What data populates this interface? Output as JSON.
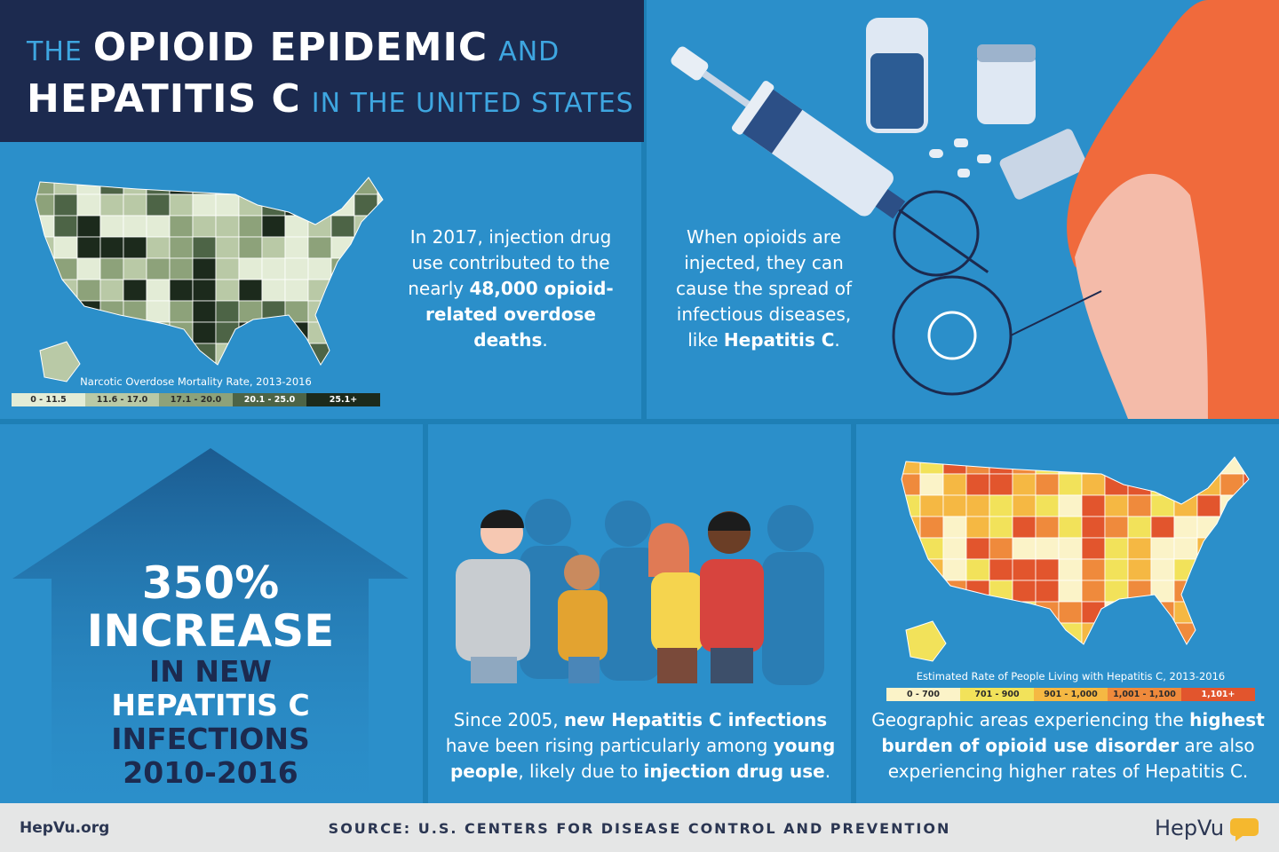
{
  "header": {
    "lines": [
      [
        {
          "text": "THE",
          "style": "light"
        },
        {
          "text": "OPIOID EPIDEMIC",
          "style": "bold"
        },
        {
          "text": "AND",
          "style": "light"
        }
      ],
      [
        {
          "text": "HEPATITIS C",
          "style": "bold"
        },
        {
          "text": "IN THE UNITED STATES",
          "style": "light"
        }
      ]
    ]
  },
  "overdose_map": {
    "caption": "Narcotic Overdose Mortality Rate, 2013-2016",
    "legend": [
      {
        "label": "0 - 11.5",
        "color": "#e3ecd6"
      },
      {
        "label": "11.6 - 17.0",
        "color": "#b9c9a6"
      },
      {
        "label": "17.1 - 20.0",
        "color": "#8da27a"
      },
      {
        "label": "20.1 - 25.0",
        "color": "#4d6446"
      },
      {
        "label": "25.1+",
        "color": "#1c2a1c"
      }
    ]
  },
  "injection_text": {
    "segments": [
      {
        "text": "In 2017, injection drug use contributed to the nearly ",
        "bold": false
      },
      {
        "text": "48,000 opioid-related overdose deaths",
        "bold": true
      },
      {
        "text": ".",
        "bold": false
      }
    ]
  },
  "spread_text": {
    "segments": [
      {
        "text": "When opioids are injected, they can cause the spread of infectious diseases, like ",
        "bold": false
      },
      {
        "text": "Hepatitis C",
        "bold": true
      },
      {
        "text": ".",
        "bold": false
      }
    ]
  },
  "increase": {
    "lines": [
      {
        "text": "350%",
        "color": "#ffffff",
        "size": "big"
      },
      {
        "text": "INCREASE",
        "color": "#ffffff",
        "size": "big"
      },
      {
        "text": "IN NEW",
        "color": "#1c2a4f",
        "size": "small"
      },
      {
        "text": "HEPATITIS C",
        "color": "#ffffff",
        "size": "small"
      },
      {
        "text": "INFECTIONS",
        "color": "#1c2a4f",
        "size": "small"
      },
      {
        "text": "2010-2016",
        "color": "#1c2a4f",
        "size": "small"
      }
    ]
  },
  "young_people_text": {
    "segments": [
      {
        "text": "Since 2005, ",
        "bold": false
      },
      {
        "text": "new Hepatitis C infections",
        "bold": true
      },
      {
        "text": " have been rising particularly among ",
        "bold": false
      },
      {
        "text": "young people",
        "bold": true
      },
      {
        "text": ", likely due to ",
        "bold": false
      },
      {
        "text": "injection drug use",
        "bold": true
      },
      {
        "text": ".",
        "bold": false
      }
    ]
  },
  "hepc_map": {
    "caption": "Estimated Rate of People Living with Hepatitis C, 2013-2016",
    "legend": [
      {
        "label": "0 - 700",
        "color": "#fbf3c8"
      },
      {
        "label": "701 - 900",
        "color": "#f2e25a"
      },
      {
        "label": "901 - 1,000",
        "color": "#f5b843"
      },
      {
        "label": "1,001 - 1,100",
        "color": "#ef8a3c"
      },
      {
        "label": "1,101+",
        "color": "#e2552d"
      }
    ]
  },
  "geo_text": {
    "segments": [
      {
        "text": "Geographic areas experiencing the ",
        "bold": false
      },
      {
        "text": "highest burden of opioid use disorder",
        "bold": true
      },
      {
        "text": " are also experiencing higher rates of Hepatitis C.",
        "bold": false
      }
    ]
  },
  "footer": {
    "site": "HepVu.org",
    "source": "SOURCE: U.S. CENTERS FOR DISEASE CONTROL AND PREVENTION",
    "logo": "HepVu"
  }
}
